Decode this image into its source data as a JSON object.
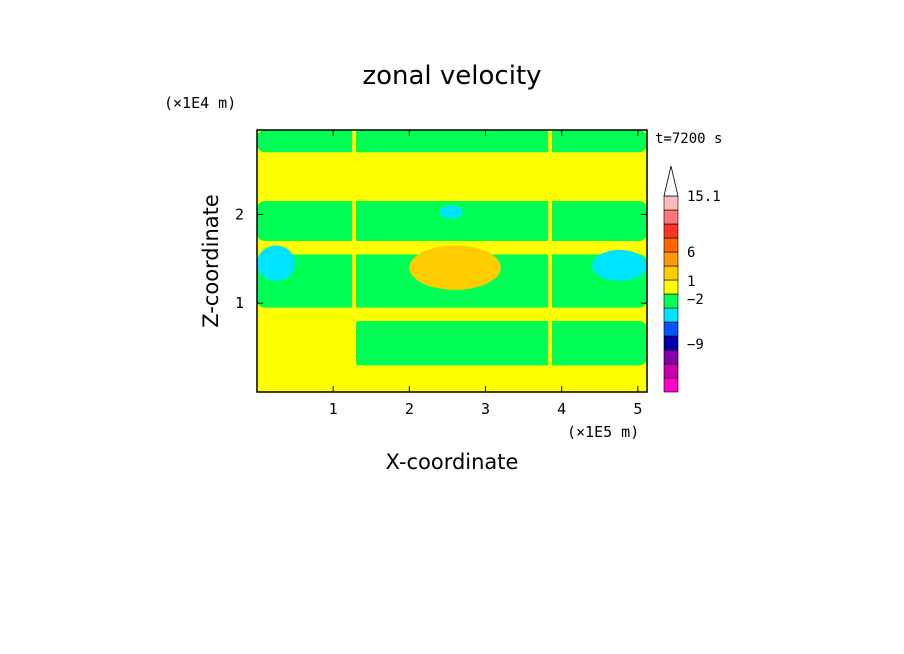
{
  "chart_data": {
    "type": "heatmap",
    "title": "zonal velocity",
    "xlabel": "X-coordinate",
    "ylabel": "Z-coordinate",
    "x_unit": "(×1E5 m)",
    "y_unit": "(×1E4 m)",
    "time_label": "t=7200 s",
    "xlim": [
      0,
      5.12
    ],
    "ylim": [
      0,
      2.95
    ],
    "x_ticks": [
      1,
      2,
      3,
      4,
      5
    ],
    "y_ticks": [
      1,
      2
    ],
    "x_tick_labels": [
      "1",
      "2",
      "3",
      "4",
      "5"
    ],
    "y_tick_labels": [
      "1",
      "2"
    ],
    "colorbar": {
      "labels": [
        {
          "value": 15.1,
          "text": "15.1"
        },
        {
          "value": 6,
          "text": "6"
        },
        {
          "value": 1,
          "text": "1"
        },
        {
          "value": -2,
          "text": "−2"
        },
        {
          "value": -9,
          "text": "−9"
        }
      ],
      "levels_colors": [
        "#ff00cc",
        "#cc00aa",
        "#8800aa",
        "#0000aa",
        "#0055ff",
        "#00e5ff",
        "#00ff55",
        "#ffff00",
        "#ffcc00",
        "#ff9900",
        "#ff6600",
        "#ff3322",
        "#ff7777",
        "#ffbbbb"
      ],
      "arrow_top": true
    },
    "regions": [
      {
        "name": "background",
        "x": [
          0,
          5.12
        ],
        "z": [
          0,
          2.95
        ],
        "color": "#ffff00"
      },
      {
        "name": "green-band-upper",
        "x": [
          0,
          5.12
        ],
        "z": [
          1.7,
          2.15
        ],
        "color": "#00ff55"
      },
      {
        "name": "green-band-mid",
        "x": [
          0,
          5.12
        ],
        "z": [
          0.95,
          1.55
        ],
        "color": "#00ff55"
      },
      {
        "name": "green-band-low",
        "x": [
          1.25,
          5.12
        ],
        "z": [
          0.3,
          0.8
        ],
        "color": "#00ff55"
      },
      {
        "name": "green-top",
        "x": [
          0,
          5.12
        ],
        "z": [
          2.7,
          2.95
        ],
        "color": "#00ff55"
      },
      {
        "name": "orange-center",
        "x": [
          2.0,
          3.2
        ],
        "z": [
          1.15,
          1.65
        ],
        "color": "#ffcc00"
      },
      {
        "name": "cyan-left",
        "x": [
          0,
          0.5
        ],
        "z": [
          1.25,
          1.65
        ],
        "color": "#00e5ff"
      },
      {
        "name": "cyan-right",
        "x": [
          4.4,
          5.12
        ],
        "z": [
          1.25,
          1.6
        ],
        "color": "#00e5ff"
      },
      {
        "name": "cyan-upper-center",
        "x": [
          2.4,
          2.7
        ],
        "z": [
          1.95,
          2.1
        ],
        "color": "#00e5ff"
      }
    ]
  }
}
